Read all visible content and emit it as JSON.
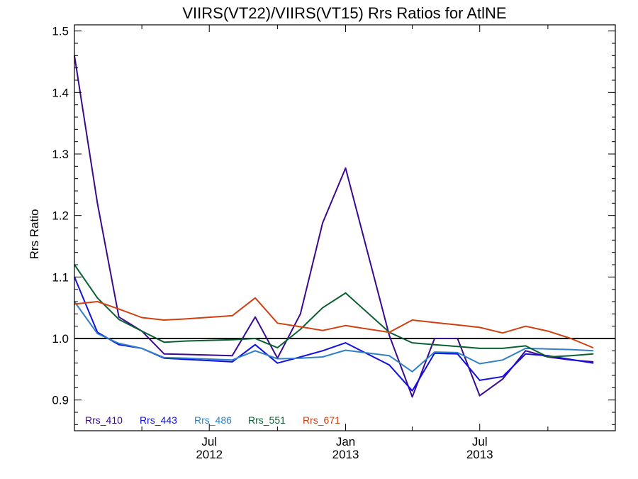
{
  "chart_data": {
    "type": "line",
    "title": "VIIRS(VT22)/VIIRS(VT15)  Rrs Ratios for AtlNE",
    "xlabel": "",
    "ylabel": "Rrs Ratio",
    "xlim": [
      "2012-01-01",
      "2013-12-31"
    ],
    "ylim": [
      0.85,
      1.51
    ],
    "y_ticks": [
      0.9,
      1.0,
      1.1,
      1.2,
      1.3,
      1.4,
      1.5
    ],
    "y_tick_labels": [
      "0.9",
      "1.0",
      "1.1",
      "1.2",
      "1.3",
      "1.4",
      "1.5"
    ],
    "x_major_ticks": [
      {
        "date": "2012-07-01",
        "label": "Jul",
        "year": "2012"
      },
      {
        "date": "2013-01-01",
        "label": "Jan",
        "year": "2013"
      },
      {
        "date": "2013-07-01",
        "label": "Jul",
        "year": "2013"
      }
    ],
    "x_minor_ticks": [
      "2012-04-01",
      "2012-10-01",
      "2013-04-01",
      "2013-10-01"
    ],
    "reference_line": 1.0,
    "grid": false,
    "legend_position": "bottom-left",
    "x": [
      "2012-01-01",
      "2012-02-01",
      "2012-03-01",
      "2012-04-01",
      "2012-05-01",
      "2012-06-01",
      "2012-08-01",
      "2012-09-01",
      "2012-10-01",
      "2012-11-01",
      "2012-12-01",
      "2013-01-01",
      "2013-03-01",
      "2013-04-01",
      "2013-05-01",
      "2013-06-01",
      "2013-07-01",
      "2013-08-01",
      "2013-09-01",
      "2013-10-01",
      "2013-11-01",
      "2013-12-01"
    ],
    "series": [
      {
        "name": "Rrs_410",
        "color": "#3a0a8c",
        "values": [
          1.46,
          1.22,
          1.035,
          1.012,
          0.975,
          0.974,
          0.972,
          1.035,
          0.968,
          1.04,
          1.188,
          1.277,
          1.005,
          0.905,
          1.0,
          1.0,
          0.907,
          0.934,
          0.98,
          0.97,
          0.965,
          0.962
        ]
      },
      {
        "name": "Rrs_443",
        "color": "#1010e0",
        "values": [
          1.1,
          1.01,
          0.99,
          0.984,
          0.968,
          0.966,
          0.962,
          0.99,
          0.96,
          0.97,
          0.98,
          0.993,
          0.957,
          0.915,
          0.976,
          0.975,
          0.932,
          0.938,
          0.975,
          0.972,
          0.966,
          0.96
        ]
      },
      {
        "name": "Rrs_486",
        "color": "#3080c8",
        "values": [
          1.06,
          1.008,
          0.992,
          0.984,
          0.969,
          0.968,
          0.965,
          0.98,
          0.967,
          0.968,
          0.97,
          0.981,
          0.972,
          0.946,
          0.978,
          0.977,
          0.959,
          0.965,
          0.984,
          0.983,
          0.982,
          0.98
        ]
      },
      {
        "name": "Rrs_551",
        "color": "#0a6030",
        "values": [
          1.12,
          1.066,
          1.031,
          1.012,
          0.994,
          0.996,
          0.998,
          1.0,
          0.985,
          1.015,
          1.05,
          1.074,
          1.01,
          0.993,
          0.99,
          0.987,
          0.984,
          0.984,
          0.988,
          0.97,
          0.972,
          0.975
        ]
      },
      {
        "name": "Rrs_671",
        "color": "#d04010",
        "values": [
          1.056,
          1.06,
          1.048,
          1.034,
          1.03,
          1.032,
          1.037,
          1.066,
          1.025,
          1.019,
          1.013,
          1.021,
          1.01,
          1.03,
          1.026,
          1.022,
          1.018,
          1.009,
          1.02,
          1.012,
          1.0,
          0.985
        ]
      }
    ]
  }
}
